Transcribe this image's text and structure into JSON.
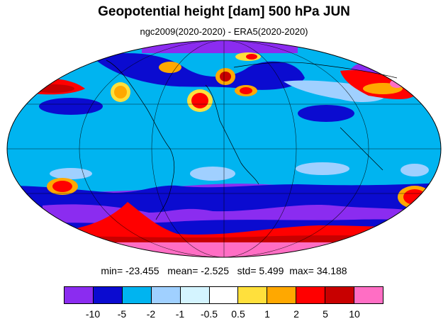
{
  "title": "Geopotential height [dam] 500 hPa JUN",
  "subtitle": "ngc2009(2020-2020) - ERA5(2020-2020)",
  "stats": {
    "min_label": "min=",
    "min": "-23.455",
    "mean_label": "mean=",
    "mean": "-2.525",
    "std_label": "std=",
    "std": "5.499",
    "max_label": "max=",
    "max": "34.188"
  },
  "legend": {
    "colors": [
      "#8b2cf0",
      "#0b0bd0",
      "#00b4f0",
      "#a0d0ff",
      "#d4f4ff",
      "#ffffff",
      "#ffe03c",
      "#ffa800",
      "#ff0000",
      "#c80000",
      "#ff6ec4"
    ],
    "tick_labels": [
      "-10",
      "-5",
      "-2",
      "-1",
      "-0.5",
      "0.5",
      "1",
      "2",
      "5",
      "10"
    ]
  },
  "map": {
    "projection": "Mollweide",
    "background_color": "#00b4f0",
    "grid_lines": "on",
    "coastlines": "on"
  }
}
